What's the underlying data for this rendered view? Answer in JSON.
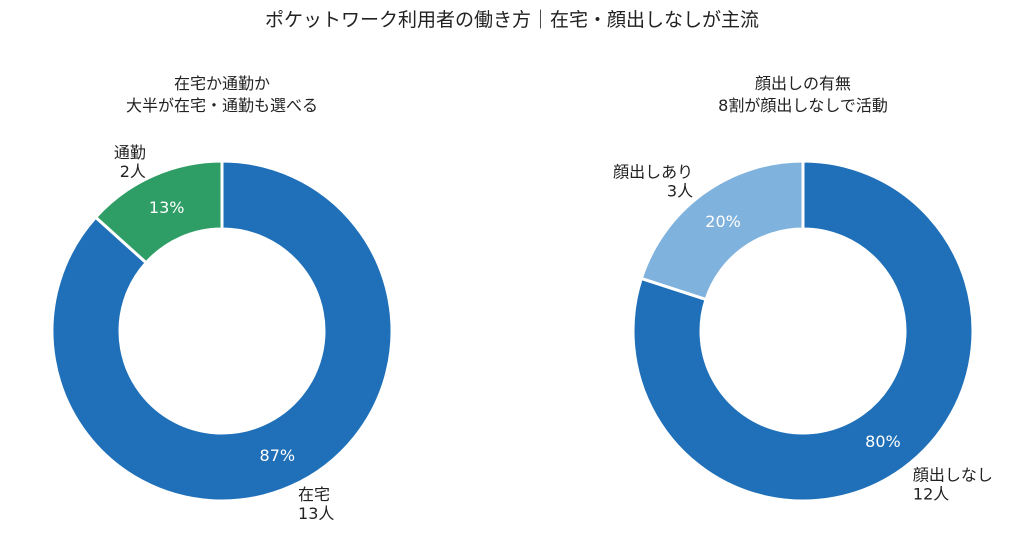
{
  "title": "ポケットワーク利用者の働き方｜在宅・顔出しなしが主流",
  "chart_data": [
    {
      "type": "pie",
      "donut": true,
      "title": "在宅か通勤か",
      "subtitle": "大半が在宅・通勤も選べる",
      "slices": [
        {
          "name": "在宅",
          "count_label": "13人",
          "value": 13,
          "percent": 87,
          "color": "#1f70b8"
        },
        {
          "name": "通勤",
          "count_label": "2人",
          "value": 2,
          "percent": 13,
          "color": "#2e9e66"
        }
      ]
    },
    {
      "type": "pie",
      "donut": true,
      "title": "顔出しの有無",
      "subtitle": "8割が顔出しなしで活動",
      "slices": [
        {
          "name": "顔出しなし",
          "count_label": "12人",
          "value": 12,
          "percent": 80,
          "color": "#1f70b8"
        },
        {
          "name": "顔出しあり",
          "count_label": "3人",
          "value": 3,
          "percent": 20,
          "color": "#7fb2dd"
        }
      ]
    }
  ]
}
